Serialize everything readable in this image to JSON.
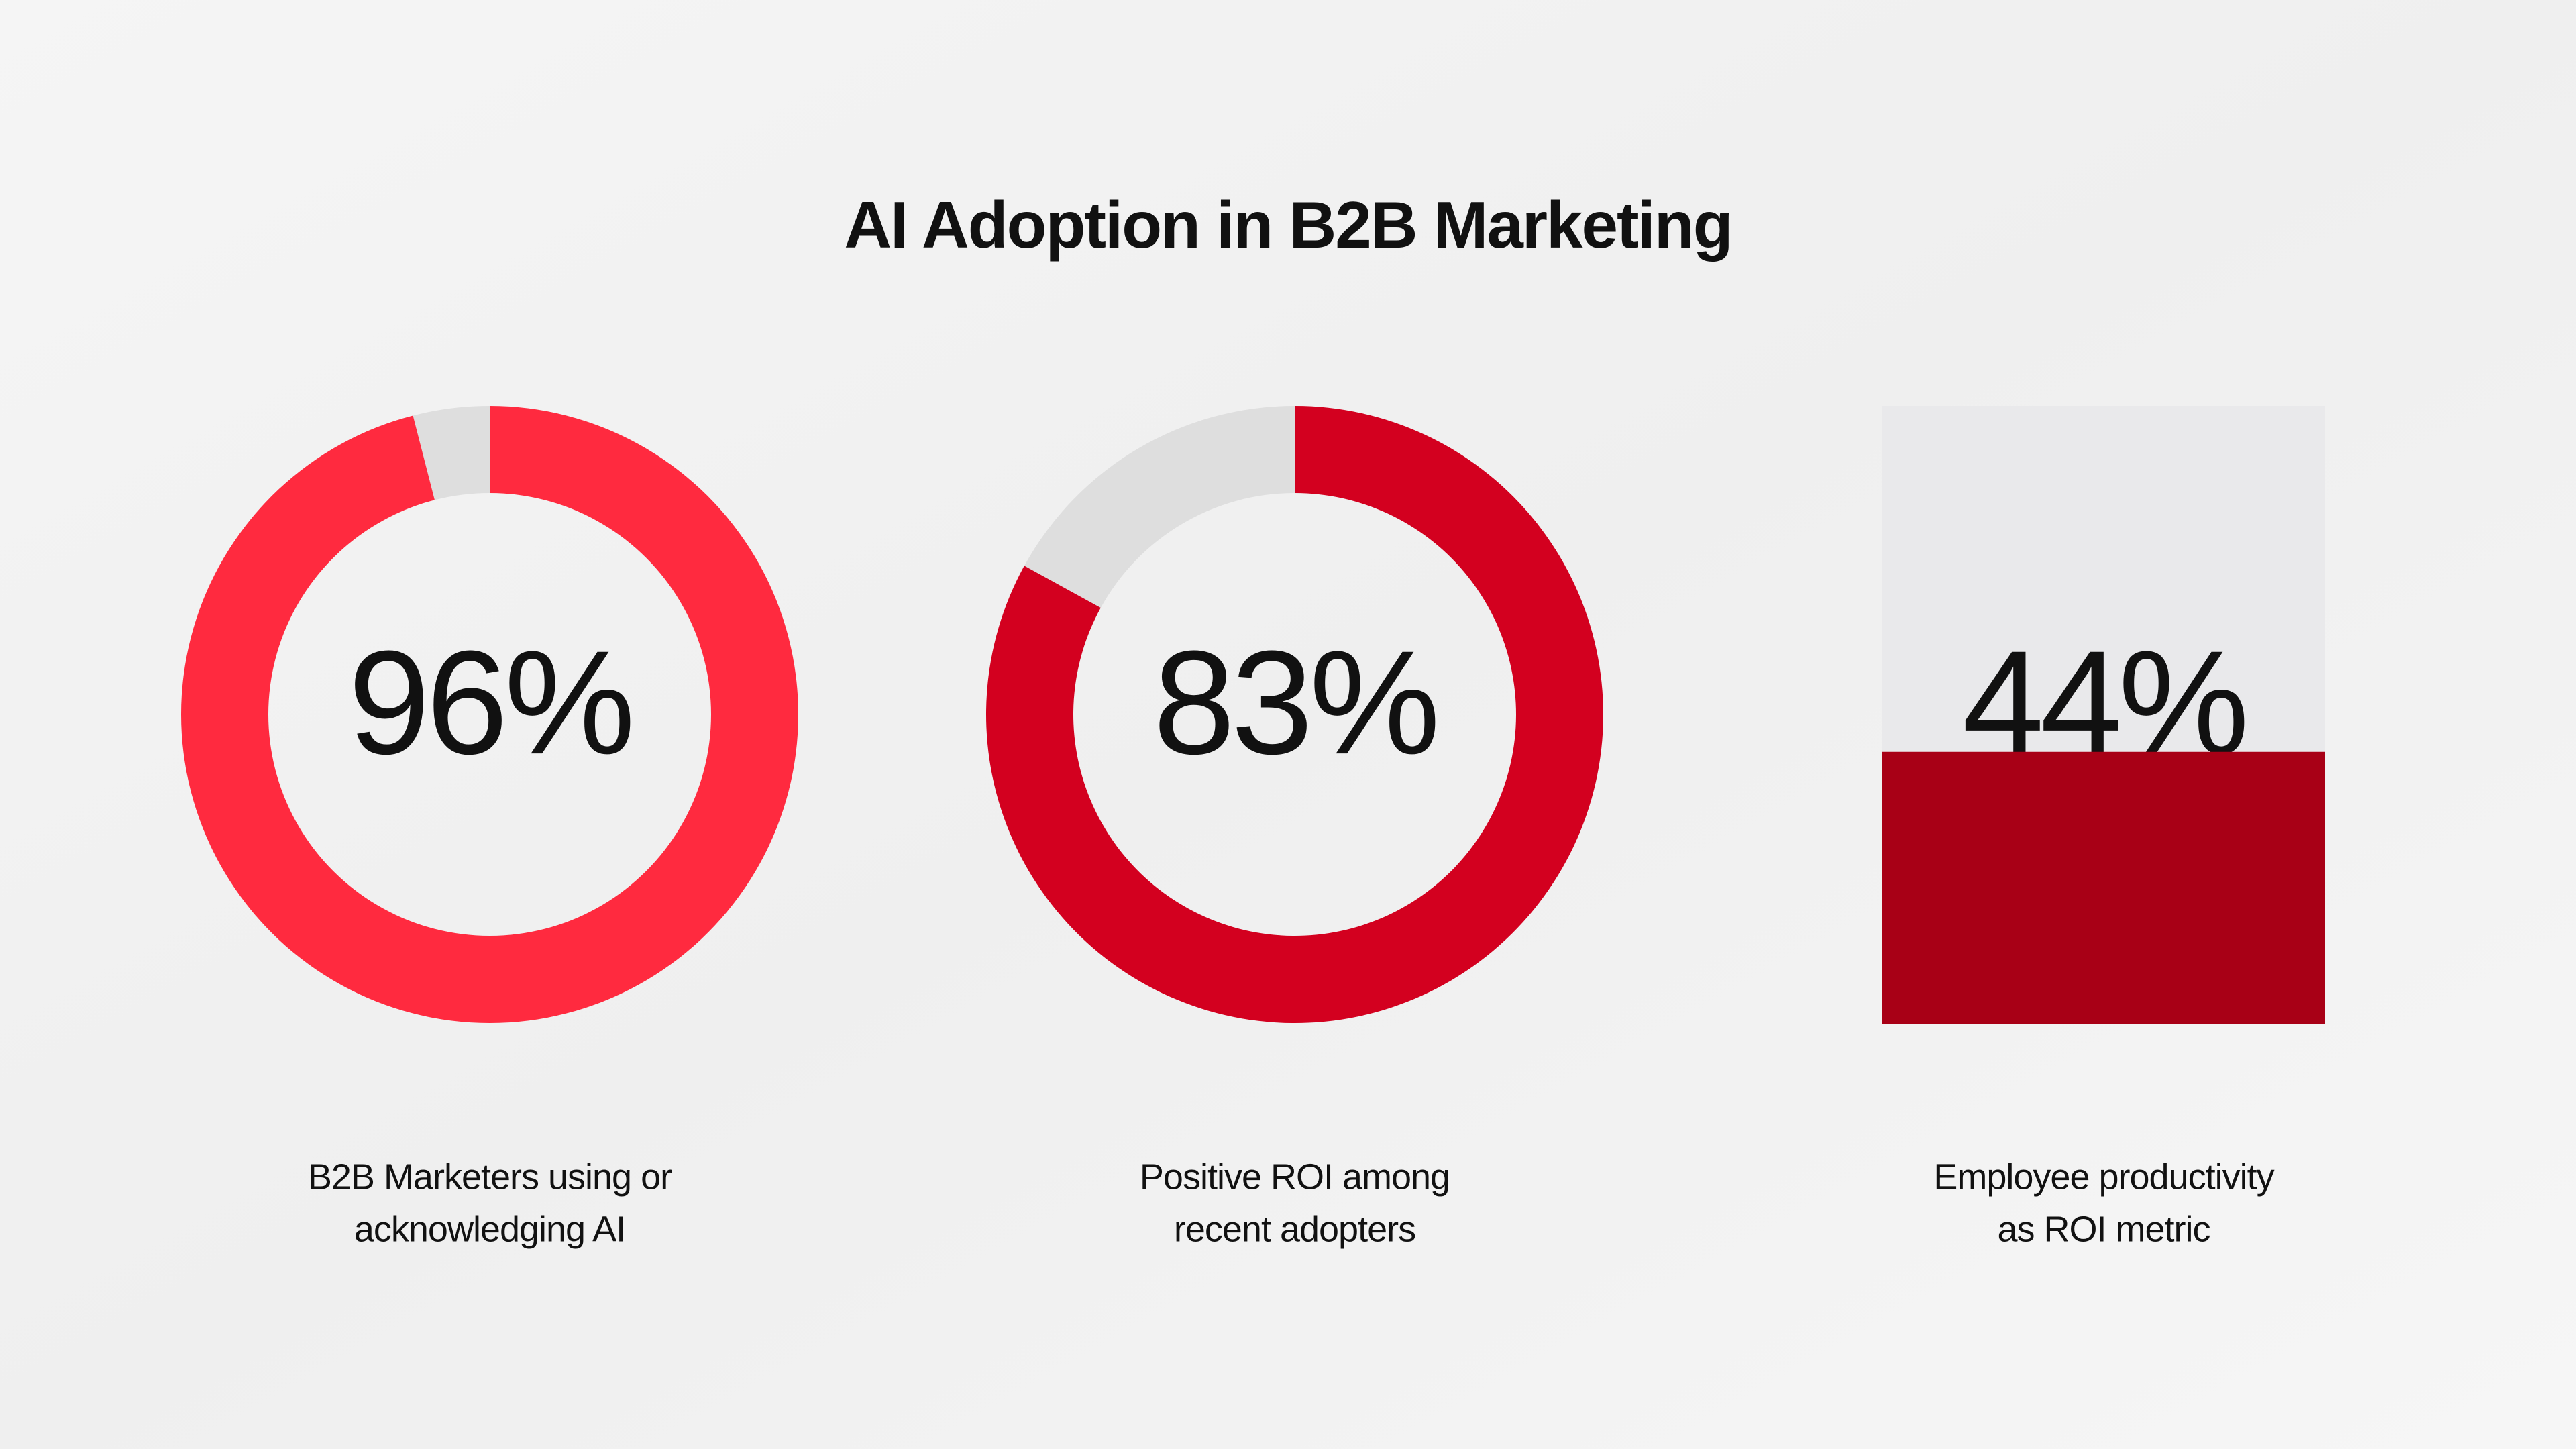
{
  "title": "AI Adoption in B2B Marketing",
  "chart_data": [
    {
      "type": "donut",
      "values": [
        96
      ],
      "value_labels": [
        "96%"
      ],
      "color": "#ff2a3f",
      "track_color": "#dedede",
      "label_lines": [
        "B2B Marketers using or",
        "acknowledging AI"
      ]
    },
    {
      "type": "donut",
      "values": [
        83
      ],
      "value_labels": [
        "83%"
      ],
      "color": "#d3001f",
      "track_color": "#dedede",
      "label_lines": [
        "Positive ROI among",
        "recent adopters"
      ]
    },
    {
      "type": "fill",
      "values": [
        44
      ],
      "value_labels": [
        "44%"
      ],
      "color": "#a80016",
      "track_color": "#e9e9eb",
      "label_lines": [
        "Employee productivity",
        "as ROI metric"
      ]
    }
  ]
}
